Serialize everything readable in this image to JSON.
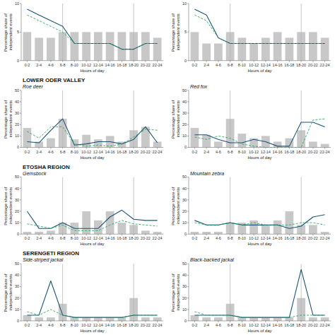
{
  "chart_data": [
    {
      "type": "bar",
      "xlabel": "Hours of day",
      "ylabel": "Percentage share of independent events",
      "categories": [
        "0-2",
        "2-4",
        "4-6",
        "6-8",
        "8-10",
        "10-12",
        "12-14",
        "14-16",
        "16-18",
        "18-20",
        "20-22",
        "22-24"
      ],
      "ylim": [
        0,
        10
      ],
      "yticks": [
        0,
        5,
        10
      ],
      "vlines": [
        3,
        9
      ],
      "series": [
        {
          "type": "bar",
          "color": "#c8c8c8",
          "values": [
            5,
            4,
            4,
            5,
            5,
            5,
            5,
            5,
            5,
            5,
            5,
            4
          ]
        },
        {
          "type": "line",
          "color": "#1a5276",
          "line_style": "solid",
          "values": [
            9,
            8,
            7,
            6,
            3,
            3,
            3,
            3,
            2,
            2,
            3,
            3
          ]
        },
        {
          "type": "line",
          "color": "#27ae60",
          "line_style": "dashed",
          "values": [
            8,
            7,
            6,
            5,
            3,
            3,
            3,
            3,
            2,
            2,
            3,
            3
          ]
        }
      ]
    },
    {
      "type": "bar",
      "xlabel": "Hours of day",
      "ylabel": "Percentage share of independent events",
      "categories": [
        "0-2",
        "2-4",
        "4-6",
        "6-8",
        "8-10",
        "10-12",
        "12-14",
        "14-16",
        "16-18",
        "18-20",
        "20-22",
        "22-24"
      ],
      "ylim": [
        0,
        10
      ],
      "yticks": [
        0,
        5,
        10
      ],
      "vlines": [
        3,
        9
      ],
      "series": [
        {
          "type": "bar",
          "color": "#c8c8c8",
          "values": [
            5,
            3,
            3,
            5,
            4,
            3,
            4,
            5,
            4,
            5,
            5,
            4
          ]
        },
        {
          "type": "line",
          "color": "#1a5276",
          "line_style": "solid",
          "values": [
            9,
            8,
            4,
            3,
            3,
            3,
            3,
            3,
            3,
            3,
            3,
            3
          ]
        },
        {
          "type": "line",
          "color": "#27ae60",
          "line_style": "dashed",
          "values": [
            8,
            7,
            4,
            3,
            3,
            3,
            3,
            3,
            3,
            3,
            3,
            3
          ]
        }
      ]
    },
    {
      "type": "bar",
      "title": "LOWER ODER VALLEY",
      "subtitle": "Roe deer",
      "xlabel": "Hours of day",
      "ylabel": "Percentage share of independent events",
      "categories": [
        "0-2",
        "2-4",
        "4-6",
        "6-8",
        "8-10",
        "10-12",
        "12-14",
        "14-16",
        "16-18",
        "18-20",
        "20-22",
        "22-24"
      ],
      "ylim": [
        0,
        50
      ],
      "yticks": [
        0,
        10,
        20,
        30,
        40,
        50
      ],
      "vlines": [
        3,
        9
      ],
      "series": [
        {
          "type": "bar",
          "color": "#c8c8c8",
          "values": [
            17,
            5,
            8,
            25,
            7,
            11,
            7,
            10,
            5,
            15,
            18,
            5
          ]
        },
        {
          "type": "line",
          "color": "#1a5276",
          "line_style": "solid",
          "values": [
            5,
            4,
            15,
            25,
            2,
            3,
            5,
            5,
            3,
            7,
            18,
            4
          ]
        },
        {
          "type": "line",
          "color": "#27ae60",
          "line_style": "dashed",
          "values": [
            14,
            8,
            18,
            18,
            3,
            1,
            2,
            1,
            3,
            9,
            16,
            15
          ]
        }
      ]
    },
    {
      "type": "bar",
      "subtitle": "Red fox",
      "xlabel": "Hours of day",
      "ylabel": "Percentage share of independent events",
      "categories": [
        "0-2",
        "2-4",
        "4-6",
        "6-8",
        "8-10",
        "10-12",
        "12-14",
        "14-16",
        "16-18",
        "18-20",
        "20-22",
        "22-24"
      ],
      "ylim": [
        0,
        50
      ],
      "yticks": [
        0,
        10,
        20,
        30,
        40,
        50
      ],
      "vlines": [
        3,
        9
      ],
      "series": [
        {
          "type": "bar",
          "color": "#c8c8c8",
          "values": [
            17,
            11,
            5,
            25,
            12,
            8,
            10,
            5,
            8,
            15,
            5,
            3
          ]
        },
        {
          "type": "line",
          "color": "#1a5276",
          "line_style": "solid",
          "values": [
            11,
            11,
            7,
            4,
            4,
            7,
            5,
            1,
            1,
            22,
            22,
            18
          ]
        },
        {
          "type": "line",
          "color": "#27ae60",
          "line_style": "dashed",
          "values": [
            9,
            7,
            10,
            8,
            3,
            1,
            0,
            0,
            0,
            0,
            24,
            25
          ]
        }
      ]
    },
    {
      "type": "bar",
      "title": "ETOSHA REGION",
      "subtitle": "Gemsbock",
      "xlabel": "Hours of day",
      "ylabel": "Percentage share of independent events",
      "categories": [
        "0-2",
        "2-4",
        "4-6",
        "6-8",
        "8-10",
        "10-12",
        "12-14",
        "14-16",
        "16-18",
        "18-20",
        "20-22",
        "22-24"
      ],
      "ylim": [
        0,
        50
      ],
      "yticks": [
        0,
        10,
        20,
        30,
        40,
        50
      ],
      "vlines": [
        3,
        9
      ],
      "series": [
        {
          "type": "bar",
          "color": "#c8c8c8",
          "values": [
            2,
            2,
            3,
            10,
            10,
            20,
            12,
            20,
            10,
            8,
            3,
            2
          ]
        },
        {
          "type": "line",
          "color": "#1a5276",
          "line_style": "solid",
          "values": [
            20,
            5,
            5,
            10,
            5,
            5,
            5,
            15,
            21,
            13,
            12,
            12
          ]
        },
        {
          "type": "line",
          "color": "#27ae60",
          "line_style": "dashed",
          "values": [
            9,
            7,
            5,
            8,
            3,
            3,
            3,
            8,
            12,
            9,
            8,
            7
          ]
        }
      ]
    },
    {
      "type": "bar",
      "subtitle": "Mountain zebra",
      "xlabel": "Hours of day",
      "ylabel": "Percentage share of independent events",
      "categories": [
        "0-2",
        "2-4",
        "4-6",
        "6-8",
        "8-10",
        "10-12",
        "12-14",
        "14-16",
        "16-18",
        "18-20",
        "20-22",
        "22-24"
      ],
      "ylim": [
        0,
        50
      ],
      "yticks": [
        0,
        10,
        20,
        30,
        40,
        50
      ],
      "vlines": [
        3,
        9
      ],
      "series": [
        {
          "type": "bar",
          "color": "#c8c8c8",
          "values": [
            2,
            2,
            2,
            10,
            10,
            12,
            8,
            12,
            20,
            8,
            8,
            2
          ]
        },
        {
          "type": "line",
          "color": "#1a5276",
          "line_style": "solid",
          "values": [
            12,
            8,
            8,
            10,
            8,
            8,
            8,
            8,
            5,
            7,
            15,
            17
          ]
        },
        {
          "type": "line",
          "color": "#27ae60",
          "line_style": "dashed",
          "values": [
            10,
            8,
            8,
            10,
            8,
            10,
            8,
            8,
            8,
            10,
            10,
            8
          ]
        }
      ]
    },
    {
      "type": "bar",
      "title": "SERENGETI REGION",
      "subtitle": "Side-striped jackal",
      "xlabel": "Hours of day",
      "ylabel": "Percentage share of independent events",
      "categories": [
        "0-2",
        "2-4",
        "4-6",
        "6-8",
        "8-10",
        "10-12",
        "12-14",
        "14-16",
        "16-18",
        "18-20",
        "20-22",
        "22-24"
      ],
      "ylim": [
        0,
        50
      ],
      "yticks": [
        0,
        10,
        20,
        30,
        40,
        50
      ],
      "vlines": [
        3,
        9
      ],
      "series": [
        {
          "type": "bar",
          "color": "#c8c8c8",
          "values": [
            5,
            3,
            3,
            15,
            3,
            3,
            3,
            3,
            3,
            20,
            3,
            3
          ]
        },
        {
          "type": "line",
          "color": "#1a5276",
          "line_style": "solid",
          "values": [
            5,
            5,
            35,
            5,
            3,
            3,
            3,
            3,
            3,
            5,
            5,
            5
          ]
        },
        {
          "type": "line",
          "color": "#27ae60",
          "line_style": "dashed",
          "values": [
            8,
            5,
            10,
            5,
            3,
            3,
            3,
            3,
            3,
            5,
            5,
            5
          ]
        }
      ]
    },
    {
      "type": "bar",
      "subtitle": "Black-backed jackal",
      "xlabel": "Hours of day",
      "ylabel": "Percentage share of independent events",
      "categories": [
        "0-2",
        "2-4",
        "4-6",
        "6-8",
        "8-10",
        "10-12",
        "12-14",
        "14-16",
        "16-18",
        "18-20",
        "20-22",
        "22-24"
      ],
      "ylim": [
        0,
        50
      ],
      "yticks": [
        0,
        10,
        20,
        30,
        40,
        50
      ],
      "vlines": [
        3,
        9
      ],
      "series": [
        {
          "type": "bar",
          "color": "#c8c8c8",
          "values": [
            5,
            3,
            3,
            15,
            3,
            3,
            3,
            3,
            3,
            20,
            3,
            3
          ]
        },
        {
          "type": "line",
          "color": "#1a5276",
          "line_style": "solid",
          "values": [
            5,
            5,
            5,
            5,
            3,
            3,
            3,
            3,
            3,
            45,
            5,
            5
          ]
        },
        {
          "type": "line",
          "color": "#27ae60",
          "line_style": "dashed",
          "values": [
            8,
            5,
            5,
            5,
            3,
            3,
            3,
            3,
            3,
            5,
            5,
            5
          ]
        }
      ]
    }
  ]
}
